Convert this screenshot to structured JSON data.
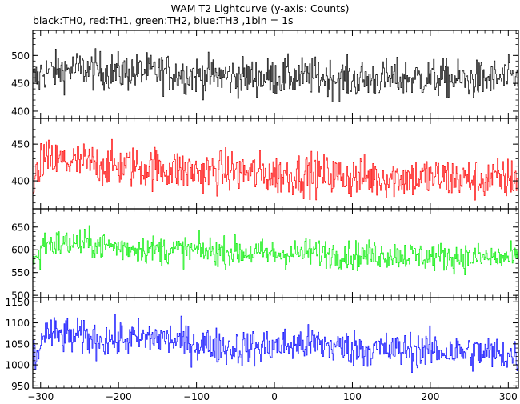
{
  "chart_data": {
    "type": "line",
    "title": "WAM T2 Lightcurve (y-axis: Counts)",
    "subtitle": "black:TH0, red:TH1, green:TH2, blue:TH3 ,1bin = 1s",
    "x_range": [
      -310,
      313
    ],
    "x_ticks": [
      -300,
      -200,
      -100,
      0,
      100,
      200,
      300
    ],
    "x_tick_labels": [
      "−300",
      "−200",
      "−100",
      "0",
      "100",
      "200",
      "300"
    ],
    "panels": [
      {
        "series": "TH0",
        "color": "#000000",
        "ylim": [
          387,
          545
        ],
        "y_ticks": [
          400,
          450,
          500
        ],
        "y_tick_labels": [
          "400",
          "450",
          "500"
        ],
        "x": [
          -300,
          -250,
          -200,
          -150,
          -100,
          -50,
          0,
          50,
          100,
          150,
          200,
          250,
          300,
          310
        ],
        "y": [
          470,
          476,
          470,
          470,
          465,
          462,
          461,
          462,
          457,
          458,
          460,
          455,
          460,
          458
        ],
        "noise": 24
      },
      {
        "series": "TH1",
        "color": "#ff0000",
        "ylim": [
          362,
          485
        ],
        "y_ticks": [
          400,
          450
        ],
        "y_tick_labels": [
          "400",
          "450"
        ],
        "x": [
          -300,
          -250,
          -200,
          -150,
          -100,
          -50,
          0,
          50,
          100,
          150,
          200,
          250,
          300,
          310
        ],
        "y": [
          428,
          425,
          420,
          418,
          412,
          413,
          408,
          410,
          405,
          405,
          405,
          402,
          403,
          405
        ],
        "noise": 20
      },
      {
        "series": "TH2",
        "color": "#00ee00",
        "ylim": [
          495,
          690
        ],
        "y_ticks": [
          500,
          550,
          600,
          650
        ],
        "y_tick_labels": [
          "500",
          "550",
          "600",
          "650"
        ],
        "x": [
          -300,
          -250,
          -200,
          -150,
          -100,
          -50,
          0,
          50,
          100,
          150,
          200,
          250,
          300,
          310
        ],
        "y": [
          612,
          615,
          605,
          600,
          598,
          595,
          590,
          595,
          588,
          590,
          585,
          583,
          582,
          580
        ],
        "noise": 22
      },
      {
        "series": "TH3",
        "color": "#0000ff",
        "ylim": [
          945,
          1160
        ],
        "y_ticks": [
          950,
          1000,
          1050,
          1100,
          1150
        ],
        "y_tick_labels": [
          "950",
          "1000",
          "1050",
          "1100",
          "1150"
        ],
        "x": [
          -300,
          -250,
          -200,
          -150,
          -100,
          -50,
          0,
          50,
          100,
          150,
          200,
          250,
          300,
          310
        ],
        "y": [
          1075,
          1065,
          1060,
          1065,
          1050,
          1040,
          1045,
          1050,
          1040,
          1035,
          1035,
          1030,
          1025,
          1020
        ],
        "noise": 30
      }
    ]
  }
}
